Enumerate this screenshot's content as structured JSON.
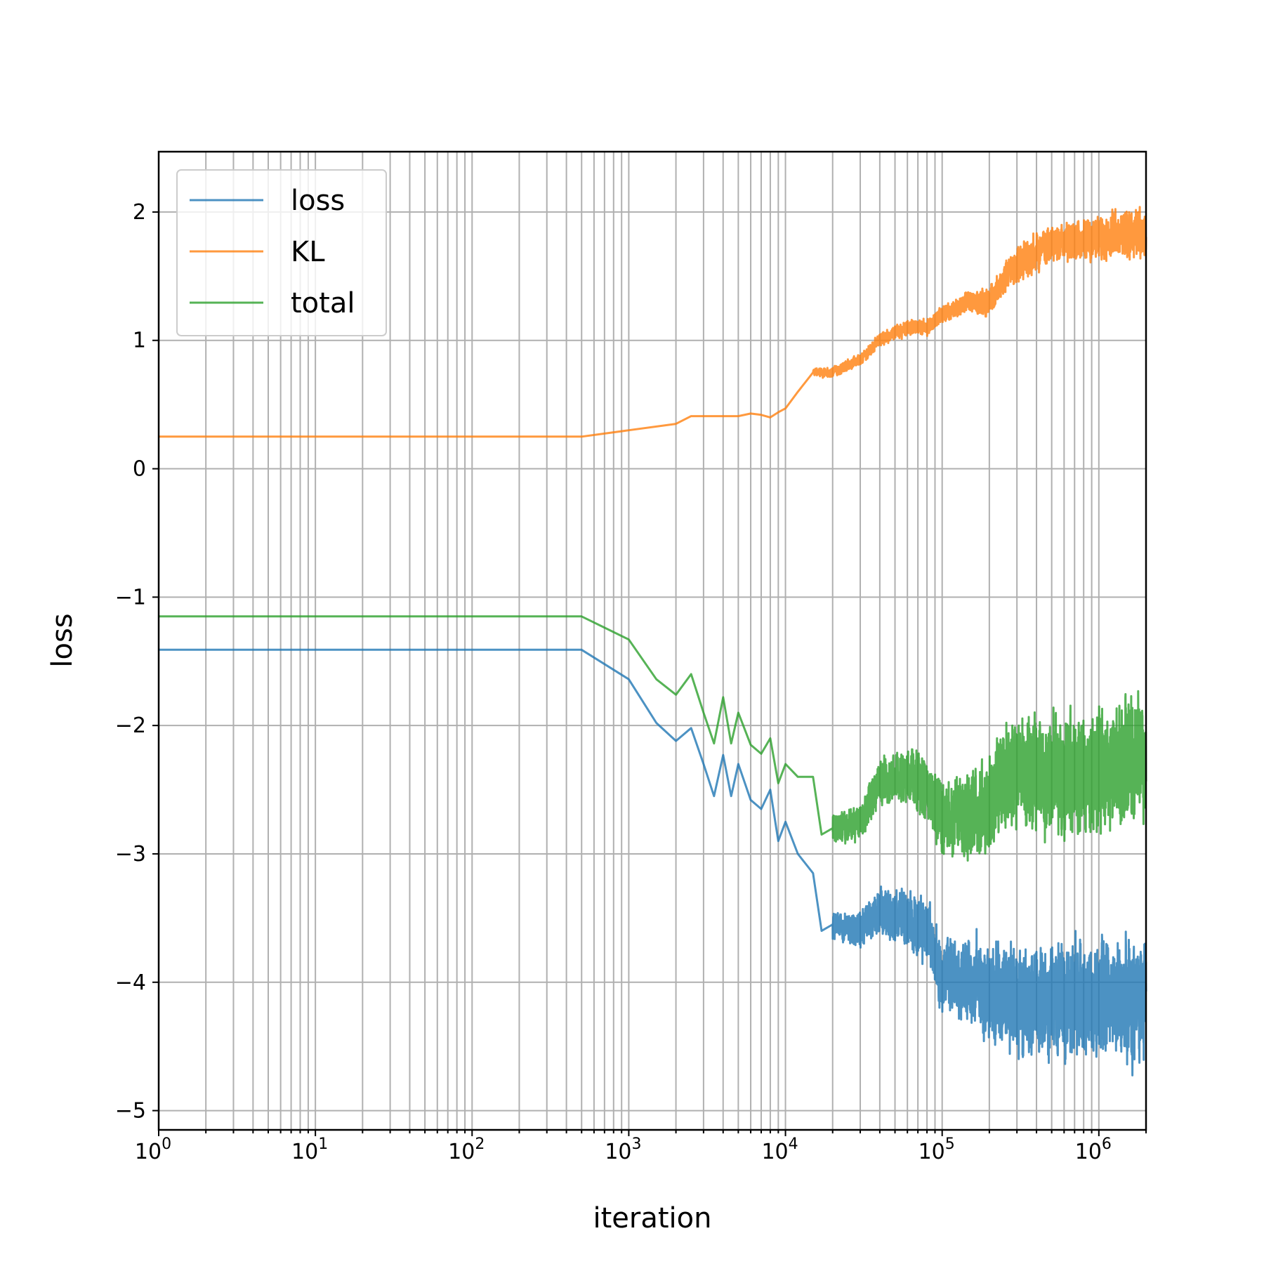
{
  "chart_data": {
    "type": "line",
    "xlabel": "iteration",
    "ylabel": "loss",
    "xscale": "log",
    "xlim": [
      1,
      2000000
    ],
    "ylim": [
      -5.15,
      2.47
    ],
    "grid": "both",
    "legend_placement": "top-left",
    "x_tick_labels": [
      {
        "base": "10",
        "exp": "0"
      },
      {
        "base": "10",
        "exp": "1"
      },
      {
        "base": "10",
        "exp": "2"
      },
      {
        "base": "10",
        "exp": "3"
      },
      {
        "base": "10",
        "exp": "4"
      },
      {
        "base": "10",
        "exp": "5"
      },
      {
        "base": "10",
        "exp": "6"
      }
    ],
    "y_ticks": [
      2,
      1,
      0,
      -1,
      -2,
      -3,
      -4,
      -5
    ],
    "y_tick_labels": [
      "2",
      "1",
      "0",
      "−1",
      "−2",
      "−3",
      "−4",
      "−5"
    ],
    "series": [
      {
        "name": "loss",
        "color": "#1f77b4",
        "points": [
          [
            1,
            -1.41
          ],
          [
            500,
            -1.41
          ],
          [
            1000,
            -1.64
          ],
          [
            1500,
            -1.98
          ],
          [
            2000,
            -2.12
          ],
          [
            2500,
            -2.02
          ],
          [
            3000,
            -2.3
          ],
          [
            3500,
            -2.55
          ],
          [
            4000,
            -2.23
          ],
          [
            4500,
            -2.55
          ],
          [
            5000,
            -2.3
          ],
          [
            6000,
            -2.58
          ],
          [
            7000,
            -2.65
          ],
          [
            8000,
            -2.5
          ],
          [
            9000,
            -2.9
          ],
          [
            10000,
            -2.75
          ],
          [
            12000,
            -3.0
          ],
          [
            15000,
            -3.15
          ],
          [
            17000,
            -3.6
          ],
          [
            20000,
            -3.55
          ],
          [
            30000,
            -3.6
          ],
          [
            40000,
            -3.45
          ],
          [
            60000,
            -3.5
          ],
          [
            80000,
            -3.6
          ],
          [
            100000,
            -3.95
          ],
          [
            150000,
            -4.0
          ],
          [
            200000,
            -4.05
          ],
          [
            300000,
            -4.15
          ],
          [
            500000,
            -4.15
          ],
          [
            1000000,
            -4.15
          ],
          [
            2000000,
            -4.1
          ]
        ],
        "noise": [
          [
            20000,
            0.1
          ],
          [
            100000,
            0.25
          ],
          [
            300000,
            0.4
          ],
          [
            2000000,
            0.45
          ]
        ]
      },
      {
        "name": "KL",
        "color": "#ff7f0e",
        "points": [
          [
            1,
            0.25
          ],
          [
            500,
            0.25
          ],
          [
            1000,
            0.3
          ],
          [
            2000,
            0.35
          ],
          [
            2500,
            0.41
          ],
          [
            3000,
            0.41
          ],
          [
            4000,
            0.41
          ],
          [
            5000,
            0.41
          ],
          [
            6000,
            0.43
          ],
          [
            7000,
            0.42
          ],
          [
            8000,
            0.4
          ],
          [
            9000,
            0.44
          ],
          [
            10000,
            0.47
          ],
          [
            12000,
            0.6
          ],
          [
            15000,
            0.75
          ],
          [
            20000,
            0.75
          ],
          [
            30000,
            0.85
          ],
          [
            40000,
            1.0
          ],
          [
            60000,
            1.1
          ],
          [
            80000,
            1.1
          ],
          [
            100000,
            1.2
          ],
          [
            150000,
            1.3
          ],
          [
            200000,
            1.3
          ],
          [
            300000,
            1.6
          ],
          [
            500000,
            1.75
          ],
          [
            1000000,
            1.8
          ],
          [
            2000000,
            1.85
          ]
        ],
        "noise": [
          [
            15000,
            0.03
          ],
          [
            100000,
            0.06
          ],
          [
            300000,
            0.12
          ],
          [
            2000000,
            0.18
          ]
        ]
      },
      {
        "name": "total",
        "color": "#2ca02c",
        "points": [
          [
            1,
            -1.15
          ],
          [
            500,
            -1.15
          ],
          [
            1000,
            -1.33
          ],
          [
            1500,
            -1.64
          ],
          [
            2000,
            -1.76
          ],
          [
            2500,
            -1.6
          ],
          [
            3000,
            -1.9
          ],
          [
            3500,
            -2.14
          ],
          [
            4000,
            -1.78
          ],
          [
            4500,
            -2.14
          ],
          [
            5000,
            -1.9
          ],
          [
            6000,
            -2.15
          ],
          [
            7000,
            -2.22
          ],
          [
            8000,
            -2.1
          ],
          [
            9000,
            -2.45
          ],
          [
            10000,
            -2.3
          ],
          [
            12000,
            -2.4
          ],
          [
            15000,
            -2.4
          ],
          [
            17000,
            -2.85
          ],
          [
            20000,
            -2.8
          ],
          [
            30000,
            -2.75
          ],
          [
            40000,
            -2.45
          ],
          [
            60000,
            -2.4
          ],
          [
            80000,
            -2.5
          ],
          [
            100000,
            -2.75
          ],
          [
            150000,
            -2.7
          ],
          [
            200000,
            -2.6
          ],
          [
            300000,
            -2.3
          ],
          [
            500000,
            -2.4
          ],
          [
            1000000,
            -2.35
          ],
          [
            2000000,
            -2.25
          ]
        ],
        "noise": [
          [
            20000,
            0.1
          ],
          [
            100000,
            0.25
          ],
          [
            300000,
            0.4
          ],
          [
            2000000,
            0.45
          ]
        ]
      }
    ]
  }
}
